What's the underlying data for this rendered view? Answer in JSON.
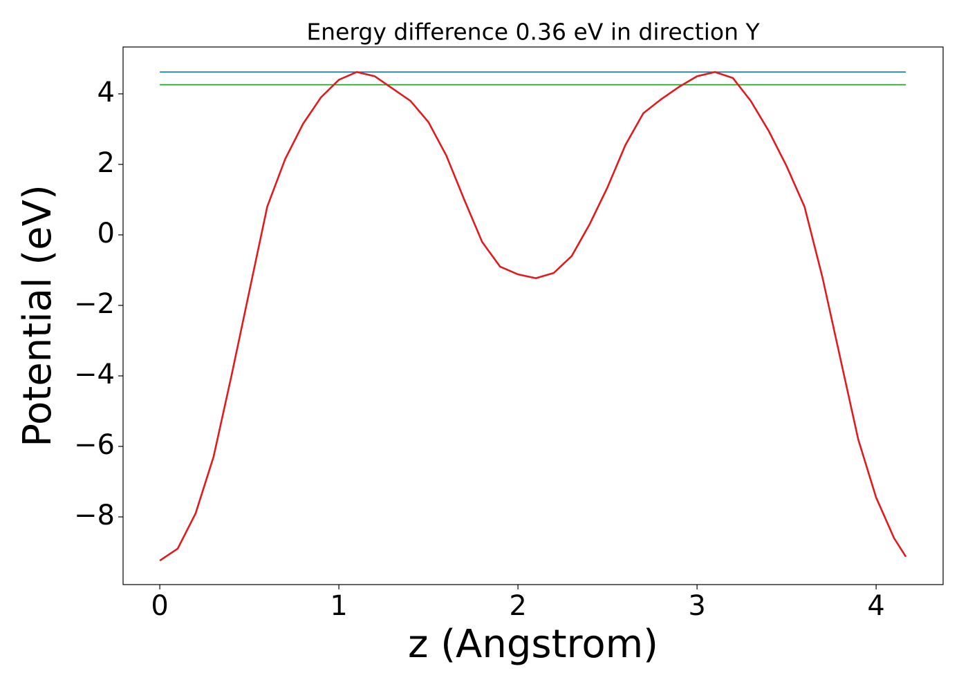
{
  "chart_data": {
    "type": "line",
    "title": "Energy difference 0.36 eV in direction Y",
    "xlabel": "z (Angstrom)",
    "ylabel": "Potential (eV)",
    "xlim": [
      -0.205,
      4.374
    ],
    "ylim": [
      -9.92,
      5.33
    ],
    "xticks": [
      0,
      1,
      2,
      3,
      4
    ],
    "yticks": [
      {
        "value": -8,
        "label": "−8"
      },
      {
        "value": -6,
        "label": "−6"
      },
      {
        "value": -4,
        "label": "−4"
      },
      {
        "value": -2,
        "label": "−2"
      },
      0,
      2,
      4
    ],
    "grid": false,
    "series": [
      {
        "color": "#1f77b4",
        "x": [
          0,
          4.166
        ],
        "values": [
          4.62,
          4.62
        ]
      },
      {
        "color": "#2ca02c",
        "x": [
          0,
          4.166
        ],
        "values": [
          4.26,
          4.26
        ]
      },
      {
        "color": "#e31a1c",
        "x": [
          0,
          0.1,
          0.2,
          0.3,
          0.4,
          0.5,
          0.6,
          0.7,
          0.8,
          0.9,
          1.0,
          1.1,
          1.2,
          1.3,
          1.4,
          1.5,
          1.6,
          1.7,
          1.8,
          1.9,
          2.0,
          2.1,
          2.2,
          2.3,
          2.4,
          2.5,
          2.6,
          2.7,
          2.8,
          2.9,
          3.0,
          3.1,
          3.2,
          3.3,
          3.4,
          3.5,
          3.6,
          3.7,
          3.8,
          3.9,
          4.0,
          4.1,
          4.166
        ],
        "values": [
          -9.24,
          -8.9,
          -7.9,
          -6.3,
          -4.0,
          -1.6,
          0.8,
          2.15,
          3.15,
          3.9,
          4.4,
          4.62,
          4.5,
          4.15,
          3.8,
          3.2,
          2.25,
          1.0,
          -0.2,
          -0.9,
          -1.12,
          -1.23,
          -1.08,
          -0.6,
          0.3,
          1.35,
          2.55,
          3.45,
          3.85,
          4.2,
          4.5,
          4.62,
          4.45,
          3.8,
          2.95,
          1.95,
          0.8,
          -1.2,
          -3.5,
          -5.8,
          -7.45,
          -8.6,
          -9.13
        ]
      }
    ]
  }
}
